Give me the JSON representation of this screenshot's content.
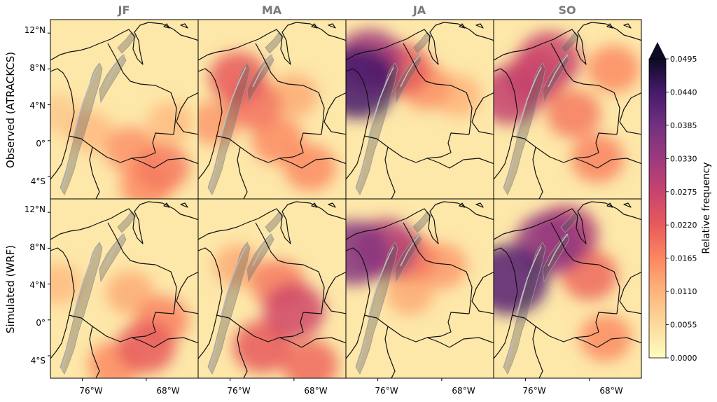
{
  "columns": [
    "JF",
    "MA",
    "JA",
    "SO"
  ],
  "rows": [
    "Observed (ATRACKCS)",
    "Simulated (WRF)"
  ],
  "lat_ticks": [
    "12°N",
    "8°N",
    "4°N",
    "0°",
    "4°S"
  ],
  "lon_ticks": [
    "76°W",
    "68°W"
  ],
  "colorbar": {
    "label": "Relative frequency",
    "ticks": [
      "0.0000",
      "0.0055",
      "0.0110",
      "0.0165",
      "0.0220",
      "0.0275",
      "0.0330",
      "0.0385",
      "0.0440",
      "0.0495"
    ],
    "colormap": [
      "#fcfdbf",
      "#fdda9c",
      "#feb47b",
      "#fb8761",
      "#e85a5c",
      "#c7436e",
      "#9c3a7e",
      "#72307f",
      "#461a6b",
      "#0d0a24"
    ]
  },
  "panels": [
    {
      "row": 0,
      "col": 0,
      "hotspots": [
        {
          "lon": -66,
          "lat": -3,
          "v": 0.018
        },
        {
          "lon": -70,
          "lat": -1,
          "v": 0.015
        },
        {
          "lon": -75,
          "lat": 1,
          "v": 0.01
        },
        {
          "lon": -79,
          "lat": 3,
          "v": 0.008
        },
        {
          "lon": -68,
          "lat": -5,
          "v": 0.016
        },
        {
          "lon": -65,
          "lat": 2,
          "v": 0.01
        }
      ]
    },
    {
      "row": 0,
      "col": 1,
      "hotspots": [
        {
          "lon": -75,
          "lat": 7,
          "v": 0.022
        },
        {
          "lon": -73,
          "lat": 4,
          "v": 0.019
        },
        {
          "lon": -70,
          "lat": 0,
          "v": 0.016
        },
        {
          "lon": -66,
          "lat": -3,
          "v": 0.016
        },
        {
          "lon": -78,
          "lat": 2,
          "v": 0.014
        },
        {
          "lon": -68,
          "lat": 5,
          "v": 0.012
        }
      ]
    },
    {
      "row": 0,
      "col": 2,
      "hotspots": [
        {
          "lon": -78.5,
          "lat": 6.5,
          "v": 0.044
        },
        {
          "lon": -77,
          "lat": 9,
          "v": 0.032
        },
        {
          "lon": -73,
          "lat": 8,
          "v": 0.022
        },
        {
          "lon": -70,
          "lat": 6,
          "v": 0.015
        },
        {
          "lon": -66,
          "lat": 5,
          "v": 0.011
        }
      ]
    },
    {
      "row": 0,
      "col": 3,
      "hotspots": [
        {
          "lon": -78,
          "lat": 5,
          "v": 0.028
        },
        {
          "lon": -73,
          "lat": 9,
          "v": 0.027
        },
        {
          "lon": -75,
          "lat": 7,
          "v": 0.025
        },
        {
          "lon": -70,
          "lat": 3,
          "v": 0.018
        },
        {
          "lon": -67,
          "lat": -2,
          "v": 0.017
        },
        {
          "lon": -65,
          "lat": 8,
          "v": 0.016
        }
      ]
    },
    {
      "row": 1,
      "col": 0,
      "hotspots": [
        {
          "lon": -68,
          "lat": -3,
          "v": 0.022
        },
        {
          "lon": -66,
          "lat": 0,
          "v": 0.017
        },
        {
          "lon": -72,
          "lat": -5,
          "v": 0.016
        },
        {
          "lon": -70,
          "lat": 3,
          "v": 0.012
        },
        {
          "lon": -79,
          "lat": 4,
          "v": 0.01
        }
      ]
    },
    {
      "row": 1,
      "col": 1,
      "hotspots": [
        {
          "lon": -68,
          "lat": 1,
          "v": 0.026
        },
        {
          "lon": -72,
          "lat": -3,
          "v": 0.022
        },
        {
          "lon": -70,
          "lat": 4,
          "v": 0.018
        },
        {
          "lon": -66,
          "lat": -5,
          "v": 0.02
        },
        {
          "lon": -75,
          "lat": 6,
          "v": 0.012
        }
      ]
    },
    {
      "row": 1,
      "col": 2,
      "hotspots": [
        {
          "lon": -79,
          "lat": 7.5,
          "v": 0.036
        },
        {
          "lon": -75,
          "lat": 8,
          "v": 0.03
        },
        {
          "lon": -72,
          "lat": 7,
          "v": 0.018
        },
        {
          "lon": -68,
          "lat": 6,
          "v": 0.014
        },
        {
          "lon": -72,
          "lat": 3,
          "v": 0.012
        }
      ]
    },
    {
      "row": 1,
      "col": 3,
      "hotspots": [
        {
          "lon": -78,
          "lat": 4.5,
          "v": 0.042
        },
        {
          "lon": -73,
          "lat": 8.5,
          "v": 0.034
        },
        {
          "lon": -71,
          "lat": 9.5,
          "v": 0.03
        },
        {
          "lon": -68,
          "lat": 5,
          "v": 0.02
        },
        {
          "lon": -66,
          "lat": -2,
          "v": 0.016
        }
      ]
    }
  ]
}
